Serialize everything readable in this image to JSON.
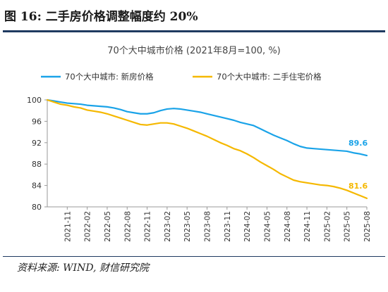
{
  "figure": {
    "title": "图 16:  二手房价格调整幅度约 20%",
    "source": "资料来源: WIND, 财信研究院"
  },
  "chart_data": {
    "type": "line",
    "title": "70个大中城市价格 (2021年8月=100, %)",
    "xlabel": "",
    "ylabel": "",
    "ylim": [
      80,
      100
    ],
    "yticks": [
      80,
      84,
      88,
      92,
      96,
      100
    ],
    "grid": false,
    "legend_position": "top",
    "x": [
      "2021-08",
      "2021-09",
      "2021-10",
      "2021-11",
      "2021-12",
      "2022-01",
      "2022-02",
      "2022-03",
      "2022-04",
      "2022-05",
      "2022-06",
      "2022-07",
      "2022-08",
      "2022-09",
      "2022-10",
      "2022-11",
      "2022-12",
      "2023-01",
      "2023-02",
      "2023-03",
      "2023-04",
      "2023-05",
      "2023-06",
      "2023-07",
      "2023-08",
      "2023-09",
      "2023-10",
      "2023-11",
      "2023-12",
      "2024-01",
      "2024-02",
      "2024-03",
      "2024-04",
      "2024-05",
      "2024-06",
      "2024-07",
      "2024-08",
      "2024-09",
      "2024-10",
      "2024-11",
      "2024-12",
      "2025-01",
      "2025-02",
      "2025-03",
      "2025-04",
      "2025-05",
      "2025-06",
      "2025-07",
      "2025-08"
    ],
    "xtick_labels": [
      "2021-11",
      "2022-02",
      "2022-05",
      "2022-08",
      "2022-11",
      "2023-02",
      "2023-05",
      "2023-08",
      "2023-11",
      "2024-02",
      "2024-05",
      "2024-08",
      "2024-11",
      "2025-02",
      "2025-05",
      "2025-08"
    ],
    "series": [
      {
        "name": "70个大中城市: 新房价格",
        "color": "#1aa3e8",
        "values": [
          100.0,
          99.8,
          99.6,
          99.4,
          99.3,
          99.2,
          99.0,
          98.9,
          98.8,
          98.7,
          98.5,
          98.2,
          97.8,
          97.6,
          97.4,
          97.4,
          97.6,
          98.0,
          98.3,
          98.4,
          98.3,
          98.1,
          97.9,
          97.7,
          97.4,
          97.1,
          96.8,
          96.5,
          96.2,
          95.8,
          95.5,
          95.2,
          94.6,
          94.0,
          93.4,
          92.9,
          92.4,
          91.8,
          91.3,
          91.0,
          90.9,
          90.8,
          90.7,
          90.6,
          90.5,
          90.4,
          90.1,
          89.9,
          89.6
        ],
        "end_label": "89.6"
      },
      {
        "name": "70个大中城市: 二手住宅价格",
        "color": "#f5b800",
        "values": [
          100.0,
          99.6,
          99.2,
          99.0,
          98.7,
          98.5,
          98.1,
          97.9,
          97.7,
          97.4,
          97.0,
          96.6,
          96.2,
          95.8,
          95.4,
          95.3,
          95.5,
          95.7,
          95.7,
          95.5,
          95.1,
          94.7,
          94.2,
          93.7,
          93.2,
          92.6,
          92.0,
          91.5,
          90.9,
          90.5,
          89.9,
          89.2,
          88.4,
          87.7,
          87.0,
          86.2,
          85.6,
          85.0,
          84.7,
          84.5,
          84.3,
          84.1,
          84.0,
          83.8,
          83.5,
          83.1,
          82.6,
          82.1,
          81.6
        ],
        "end_label": "81.6"
      }
    ]
  }
}
